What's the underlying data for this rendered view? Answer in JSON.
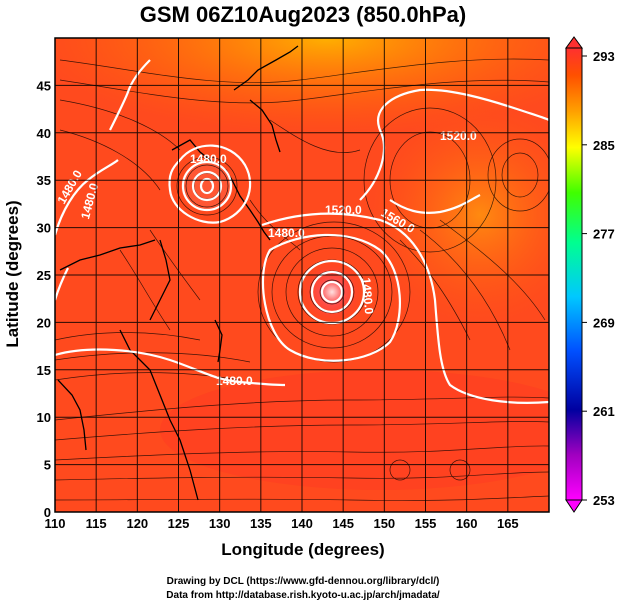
{
  "title": "GSM 06Z10Aug2023 (850.0hPa)",
  "xlabel": "Longitude (degrees)",
  "ylabel": "Latitude  (degrees)",
  "credits": [
    "Drawing by DCL (https://www.gfd-dennou.org/library/dcl/)",
    "Data from http://database.rish.kyoto-u.ac.jp/arch/jmadata/"
  ],
  "chart_data": {
    "type": "heatmap",
    "x_ticks": [
      "110",
      "115",
      "120",
      "125",
      "130",
      "135",
      "140",
      "145",
      "150",
      "155",
      "160",
      "165"
    ],
    "y_ticks": [
      "0",
      "5",
      "10",
      "15",
      "20",
      "25",
      "30",
      "35",
      "40",
      "45"
    ],
    "xlim": [
      110,
      170
    ],
    "ylim": [
      0,
      50
    ],
    "grid": true,
    "colorbar": {
      "ticks": [
        "293",
        "285",
        "277",
        "269",
        "261",
        "253"
      ],
      "range": [
        253,
        293
      ],
      "colors": [
        "#ff00ff",
        "#0000a0",
        "#0050ff",
        "#00c8ff",
        "#00ff90",
        "#40ff00",
        "#ffff00",
        "#ffa000",
        "#ff5000",
        "#ff3030"
      ]
    },
    "contour_labels": [
      {
        "text": "1480.0",
        "lon": 126.5,
        "lat": 35.8
      },
      {
        "text": "1480.0",
        "lon": 112.5,
        "lat": 35.5
      },
      {
        "text": "1480.0",
        "lon": 115.5,
        "lat": 32.0
      },
      {
        "text": "1480.0",
        "lon": 138.5,
        "lat": 30.7
      },
      {
        "text": "1480.0",
        "lon": 128.0,
        "lat": 13.5
      },
      {
        "text": "1520.0",
        "lon": 144.5,
        "lat": 32.0
      },
      {
        "text": "1520.0",
        "lon": 160.0,
        "lat": 40.0
      },
      {
        "text": "1560.0",
        "lon": 152.5,
        "lat": 33.0
      },
      {
        "text": "1480.0",
        "lon": 146.0,
        "lat": 22.0
      }
    ],
    "low_centers": [
      {
        "name": "low-north",
        "lon": 127.8,
        "lat": 36.2
      },
      {
        "name": "typhoon-center",
        "lon": 143.0,
        "lat": 25.5
      }
    ]
  }
}
